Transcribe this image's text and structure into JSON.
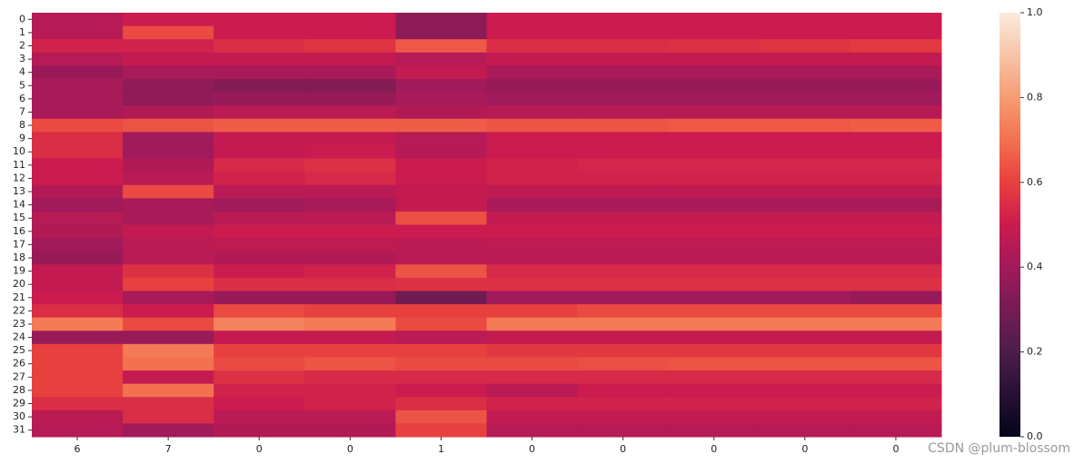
{
  "chart_data": {
    "type": "heatmap",
    "x_categories": [
      "6",
      "7",
      "0",
      "0",
      "1",
      "0",
      "0",
      "0",
      "0",
      "0"
    ],
    "y_categories": [
      "0",
      "1",
      "2",
      "3",
      "4",
      "5",
      "6",
      "7",
      "8",
      "9",
      "10",
      "11",
      "12",
      "13",
      "14",
      "15",
      "16",
      "17",
      "18",
      "19",
      "20",
      "21",
      "22",
      "23",
      "24",
      "25",
      "26",
      "27",
      "28",
      "29",
      "30",
      "31"
    ],
    "values": [
      [
        0.45,
        0.5,
        0.5,
        0.5,
        0.35,
        0.5,
        0.5,
        0.5,
        0.5,
        0.5
      ],
      [
        0.45,
        0.62,
        0.5,
        0.5,
        0.35,
        0.5,
        0.5,
        0.5,
        0.5,
        0.5
      ],
      [
        0.52,
        0.52,
        0.55,
        0.57,
        0.65,
        0.55,
        0.55,
        0.56,
        0.57,
        0.58
      ],
      [
        0.45,
        0.48,
        0.48,
        0.48,
        0.45,
        0.48,
        0.48,
        0.48,
        0.48,
        0.48
      ],
      [
        0.38,
        0.42,
        0.42,
        0.42,
        0.48,
        0.42,
        0.42,
        0.42,
        0.42,
        0.42
      ],
      [
        0.42,
        0.36,
        0.33,
        0.33,
        0.4,
        0.38,
        0.38,
        0.38,
        0.38,
        0.38
      ],
      [
        0.42,
        0.36,
        0.38,
        0.38,
        0.42,
        0.4,
        0.4,
        0.4,
        0.4,
        0.4
      ],
      [
        0.42,
        0.44,
        0.46,
        0.46,
        0.44,
        0.45,
        0.45,
        0.45,
        0.45,
        0.45
      ],
      [
        0.62,
        0.64,
        0.66,
        0.66,
        0.66,
        0.64,
        0.64,
        0.65,
        0.65,
        0.66
      ],
      [
        0.55,
        0.4,
        0.48,
        0.48,
        0.45,
        0.5,
        0.5,
        0.5,
        0.5,
        0.5
      ],
      [
        0.55,
        0.4,
        0.48,
        0.5,
        0.45,
        0.5,
        0.5,
        0.5,
        0.5,
        0.5
      ],
      [
        0.5,
        0.44,
        0.54,
        0.56,
        0.5,
        0.52,
        0.53,
        0.53,
        0.53,
        0.53
      ],
      [
        0.5,
        0.46,
        0.52,
        0.54,
        0.5,
        0.52,
        0.52,
        0.52,
        0.52,
        0.52
      ],
      [
        0.44,
        0.62,
        0.46,
        0.46,
        0.48,
        0.47,
        0.47,
        0.47,
        0.47,
        0.47
      ],
      [
        0.4,
        0.42,
        0.4,
        0.42,
        0.48,
        0.42,
        0.42,
        0.42,
        0.42,
        0.42
      ],
      [
        0.45,
        0.42,
        0.46,
        0.46,
        0.63,
        0.48,
        0.48,
        0.48,
        0.48,
        0.48
      ],
      [
        0.44,
        0.48,
        0.5,
        0.5,
        0.5,
        0.5,
        0.5,
        0.5,
        0.5,
        0.5
      ],
      [
        0.4,
        0.46,
        0.47,
        0.47,
        0.46,
        0.47,
        0.47,
        0.47,
        0.47,
        0.47
      ],
      [
        0.38,
        0.46,
        0.44,
        0.44,
        0.46,
        0.46,
        0.46,
        0.46,
        0.46,
        0.46
      ],
      [
        0.48,
        0.56,
        0.5,
        0.52,
        0.64,
        0.54,
        0.54,
        0.54,
        0.54,
        0.54
      ],
      [
        0.48,
        0.6,
        0.55,
        0.55,
        0.56,
        0.56,
        0.56,
        0.56,
        0.56,
        0.56
      ],
      [
        0.5,
        0.42,
        0.38,
        0.38,
        0.28,
        0.4,
        0.4,
        0.4,
        0.4,
        0.38
      ],
      [
        0.55,
        0.5,
        0.62,
        0.6,
        0.6,
        0.6,
        0.62,
        0.62,
        0.62,
        0.62
      ],
      [
        0.72,
        0.62,
        0.74,
        0.72,
        0.62,
        0.72,
        0.72,
        0.72,
        0.72,
        0.72
      ],
      [
        0.38,
        0.38,
        0.48,
        0.48,
        0.46,
        0.48,
        0.48,
        0.48,
        0.48,
        0.48
      ],
      [
        0.6,
        0.72,
        0.6,
        0.6,
        0.6,
        0.58,
        0.58,
        0.58,
        0.58,
        0.58
      ],
      [
        0.6,
        0.7,
        0.62,
        0.64,
        0.62,
        0.62,
        0.63,
        0.64,
        0.64,
        0.64
      ],
      [
        0.6,
        0.48,
        0.56,
        0.54,
        0.54,
        0.54,
        0.54,
        0.54,
        0.54,
        0.54
      ],
      [
        0.6,
        0.7,
        0.52,
        0.52,
        0.5,
        0.46,
        0.5,
        0.5,
        0.5,
        0.5
      ],
      [
        0.55,
        0.55,
        0.5,
        0.52,
        0.55,
        0.52,
        0.52,
        0.52,
        0.52,
        0.52
      ],
      [
        0.46,
        0.55,
        0.46,
        0.46,
        0.64,
        0.48,
        0.48,
        0.48,
        0.48,
        0.48
      ],
      [
        0.45,
        0.4,
        0.44,
        0.44,
        0.6,
        0.45,
        0.45,
        0.45,
        0.45,
        0.45
      ]
    ],
    "clim": [
      0,
      1
    ],
    "cticks": [
      {
        "value": 0,
        "label": "0.0"
      },
      0.2,
      0.4,
      0.6,
      0.8,
      {
        "value": 1,
        "label": "1.0"
      }
    ],
    "colorscale": [
      [
        0,
        "#03051a"
      ],
      [
        0.2,
        "#4c1d4b"
      ],
      [
        0.4,
        "#a11a5b"
      ],
      [
        0.5,
        "#cb1b4f"
      ],
      [
        0.6,
        "#e8403e"
      ],
      [
        0.7,
        "#f3714f"
      ],
      [
        0.8,
        "#f69c73"
      ],
      [
        1,
        "#faebdd"
      ]
    ],
    "watermark": "CSDN @plum-blossom"
  }
}
